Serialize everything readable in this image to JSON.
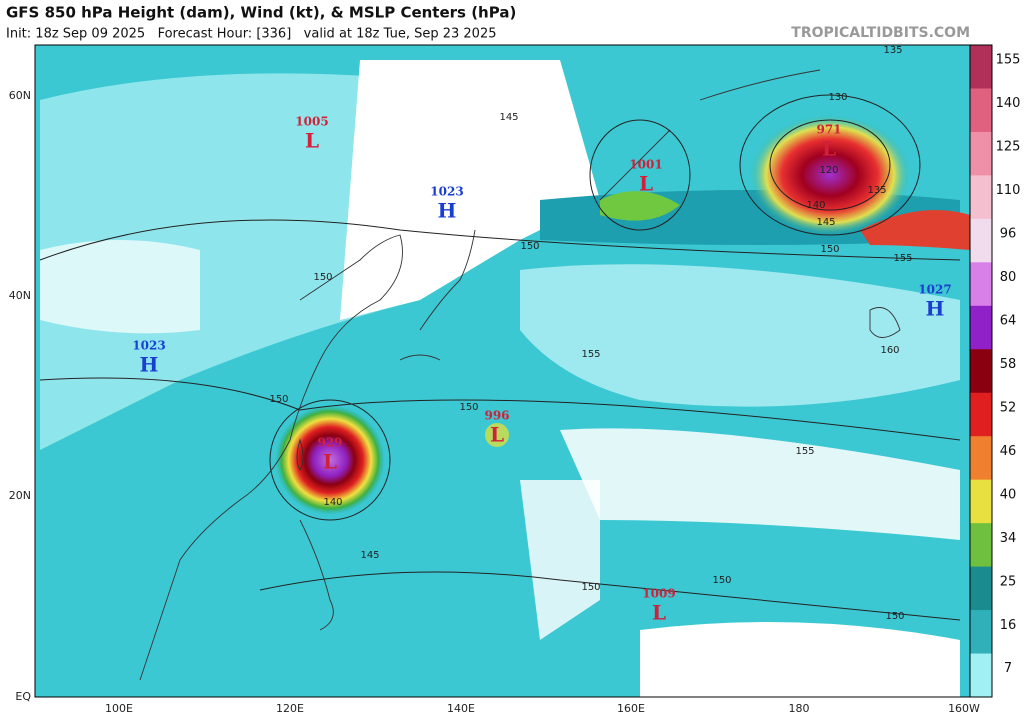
{
  "header": {
    "title": "GFS 850 hPa Height (dam), Wind (kt), & MSLP Centers (hPa)",
    "subtitle": "Init: 18z Sep 09 2025   Forecast Hour: [336]   valid at 18z Tue, Sep 23 2025",
    "site": "TROPICALTIDBITS.COM"
  },
  "map": {
    "lat_labels": [
      "60N",
      "40N",
      "20N",
      "EQ"
    ],
    "lon_labels": [
      "100E",
      "120E",
      "140E",
      "160E",
      "180",
      "160W"
    ],
    "centers": [
      {
        "type": "L",
        "value": "1005"
      },
      {
        "type": "H",
        "value": "1023"
      },
      {
        "type": "L",
        "value": "1001"
      },
      {
        "type": "L",
        "value": "971"
      },
      {
        "type": "H",
        "value": "1027"
      },
      {
        "type": "H",
        "value": "1023"
      },
      {
        "type": "L",
        "value": "929"
      },
      {
        "type": "L",
        "value": "996"
      },
      {
        "type": "L",
        "value": "1009"
      }
    ],
    "contour_labels": [
      "135",
      "130",
      "145",
      "150",
      "150",
      "155",
      "150",
      "155",
      "160",
      "150",
      "150",
      "140",
      "145",
      "155",
      "150",
      "150",
      "150",
      "135",
      "140",
      "145",
      "120"
    ]
  },
  "colorbar": {
    "labels": [
      "155",
      "140",
      "125",
      "110",
      "96",
      "80",
      "64",
      "58",
      "52",
      "46",
      "40",
      "34",
      "25",
      "16",
      "7"
    ]
  }
}
